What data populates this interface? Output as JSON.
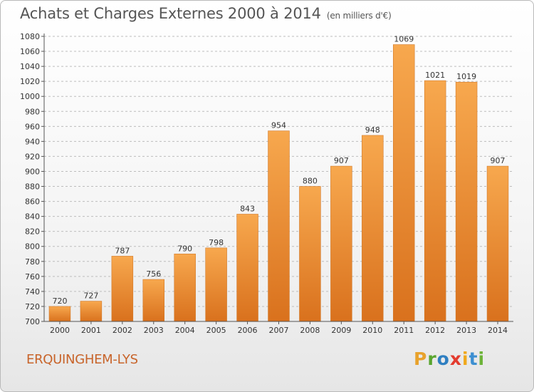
{
  "header": {
    "title": "Achats et Charges Externes 2000 à 2014",
    "unit": "(en milliers d'€)"
  },
  "footer": {
    "city": "ERQUINGHEM-LYS",
    "logo": {
      "letters": [
        "P",
        "r",
        "o",
        "x",
        "i",
        "t",
        "i"
      ],
      "colors": [
        "#e8a22c",
        "#5aa52f",
        "#2f7fc1",
        "#e33b2e",
        "#f0a81c",
        "#3d8fd1",
        "#6cb338"
      ]
    }
  },
  "colors": {
    "bar_light": "#f7a84e",
    "bar_dark": "#d9711d",
    "grid": "#bdbdbd",
    "text": "#333333",
    "title": "#555555",
    "city": "#c8642a"
  },
  "chart_data": {
    "type": "bar",
    "title": "Achats et Charges Externes 2000 à 2014",
    "subtitle": "(en milliers d'€)",
    "categories": [
      "2000",
      "2001",
      "2002",
      "2003",
      "2004",
      "2005",
      "2006",
      "2007",
      "2008",
      "2009",
      "2010",
      "2011",
      "2012",
      "2013",
      "2014"
    ],
    "values": [
      720,
      727,
      787,
      756,
      790,
      798,
      843,
      954,
      880,
      907,
      948,
      1069,
      1021,
      1019,
      907
    ],
    "data_labels": [
      "720",
      "727",
      "787",
      "756",
      "790",
      "798",
      "843",
      "954",
      "880",
      "907",
      "948",
      "1069",
      "1021",
      "1019",
      "907"
    ],
    "xlabel": "",
    "ylabel": "",
    "ylim": [
      700,
      1080
    ],
    "yticks": [
      700,
      720,
      740,
      760,
      780,
      800,
      820,
      840,
      860,
      880,
      900,
      920,
      940,
      960,
      980,
      1000,
      1020,
      1040,
      1060,
      1080
    ],
    "grid": true
  }
}
